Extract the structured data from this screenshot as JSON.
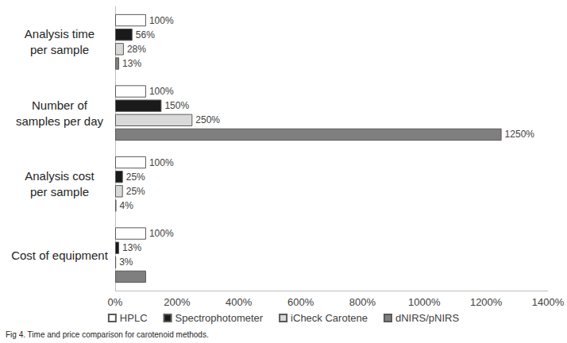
{
  "chart_data": {
    "type": "bar",
    "orientation": "horizontal",
    "caption": "Fig 4. Time and price comparison for carotenoid methods.",
    "categories": [
      "Analysis time\nper sample",
      "Number of\nsamples per day",
      "Analysis cost\nper sample",
      "Cost of equipment"
    ],
    "series": [
      {
        "name": "HPLC",
        "color": "#ffffff",
        "values": [
          100,
          100,
          100,
          100
        ],
        "value_labels": [
          "100%",
          "100%",
          "100%",
          "100%"
        ]
      },
      {
        "name": "Spectrophotometer",
        "color": "#1a1a1a",
        "values": [
          56,
          150,
          25,
          13
        ],
        "value_labels": [
          "56%",
          "150%",
          "25%",
          "13%"
        ]
      },
      {
        "name": "iCheck Carotene",
        "color": "#d9d9d9",
        "values": [
          28,
          250,
          25,
          3
        ],
        "value_labels": [
          "28%",
          "250%",
          "25%",
          "3%"
        ]
      },
      {
        "name": "dNIRS/pNIRS",
        "color": "#7f7f7f",
        "values": [
          13,
          1250,
          4,
          100
        ],
        "value_labels": [
          "13%",
          "1250%",
          "4%",
          null
        ]
      }
    ],
    "xlim": [
      0,
      1400
    ],
    "xticks": [
      {
        "value": 0,
        "label": "0%"
      },
      {
        "value": 200,
        "label": "200%"
      },
      {
        "value": 400,
        "label": "400%"
      },
      {
        "value": 600,
        "label": "600%"
      },
      {
        "value": 800,
        "label": "800%"
      },
      {
        "value": 1000,
        "label": "1000%"
      },
      {
        "value": 1200,
        "label": "1200%"
      },
      {
        "value": 1400,
        "label": "1400%"
      }
    ],
    "data_labels": true,
    "grid": false,
    "legend": "bottom"
  }
}
